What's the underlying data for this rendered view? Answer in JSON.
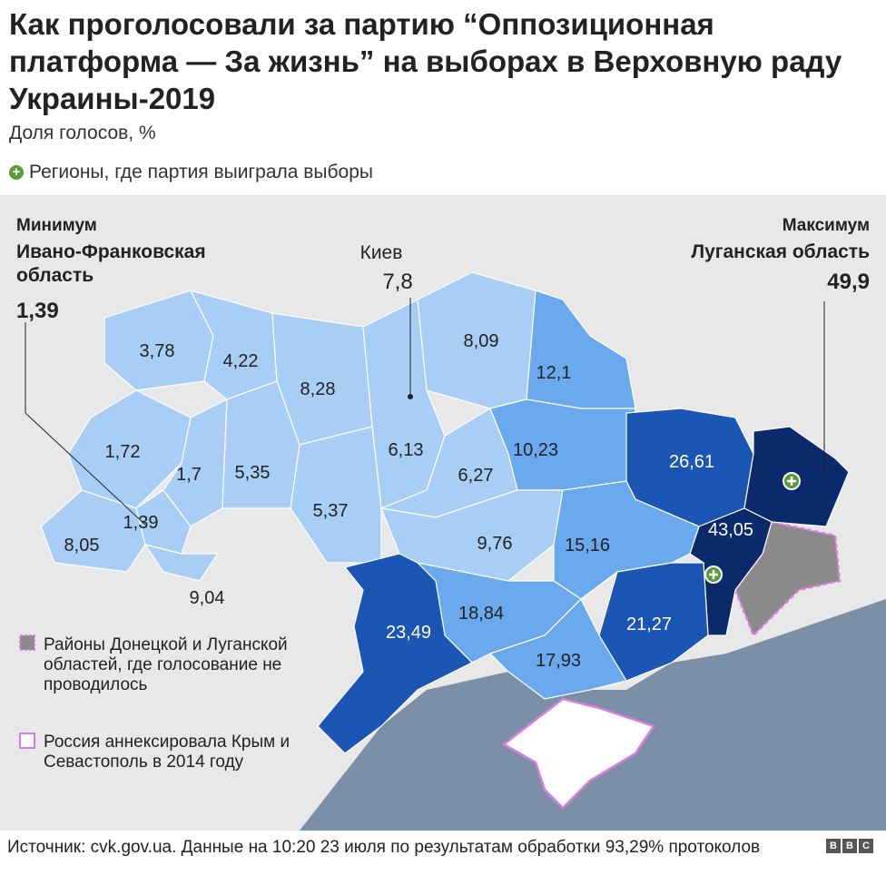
{
  "header": {
    "title": "Как проголосовали за партию “Оппозиционная платформа — За жизнь” на выборах в Верховную раду Украины-2019",
    "subtitle": "Доля голосов, %",
    "legend_win": "Регионы, где партия выиграла выборы"
  },
  "min": {
    "label": "Минимум",
    "region": "Ивано-Франковская область",
    "value": "1,39"
  },
  "max": {
    "label": "Максимум",
    "region": "Луганская область",
    "value": "49,9"
  },
  "kyiv": {
    "label": "Киев",
    "value": "7,8"
  },
  "regions": [
    {
      "label": "3,78",
      "color": "#a9cef5"
    },
    {
      "label": "4,22",
      "color": "#a9cef5"
    },
    {
      "label": "8,28",
      "color": "#a9cef5"
    },
    {
      "label": "6,13",
      "color": "#a9cef5"
    },
    {
      "label": "8,09",
      "color": "#a9cef5"
    },
    {
      "label": "12,1",
      "color": "#6aa9ee"
    },
    {
      "label": "1,72",
      "color": "#a9cef5"
    },
    {
      "label": "1,7",
      "color": "#a9cef5"
    },
    {
      "label": "5,35",
      "color": "#a9cef5"
    },
    {
      "label": "5,37",
      "color": "#a9cef5"
    },
    {
      "label": "6,27",
      "color": "#a9cef5"
    },
    {
      "label": "10,23",
      "color": "#6aa9ee"
    },
    {
      "label": "26,61",
      "color": "#1b56b4",
      "win": false
    },
    {
      "label": "49,9",
      "color": "#0a2a6b",
      "win": true
    },
    {
      "label": "43,05",
      "color": "#0a2a6b",
      "win": true
    },
    {
      "label": "1,39",
      "color": "#a9cef5"
    },
    {
      "label": "8,05",
      "color": "#a9cef5"
    },
    {
      "label": "9,04",
      "color": "#a9cef5"
    },
    {
      "label": "9,76",
      "color": "#a9cef5"
    },
    {
      "label": "15,16",
      "color": "#6aa9ee"
    },
    {
      "label": "21,27",
      "color": "#1b56b4"
    },
    {
      "label": "18,84",
      "color": "#6aa9ee"
    },
    {
      "label": "17,93",
      "color": "#6aa9ee"
    },
    {
      "label": "23,49",
      "color": "#1b56b4"
    }
  ],
  "legend": {
    "not_held": "Районы Донецкой и Луганской областей, где голосование не проводилось",
    "crimea": "Россия аннексировала Крым и Севастополь в 2014 году"
  },
  "footer": {
    "source": "Источник: cvk.gov.ua. Данные на 10:20 23 июля по результатам обработки 93,29% протоколов",
    "logo": "BBC"
  }
}
